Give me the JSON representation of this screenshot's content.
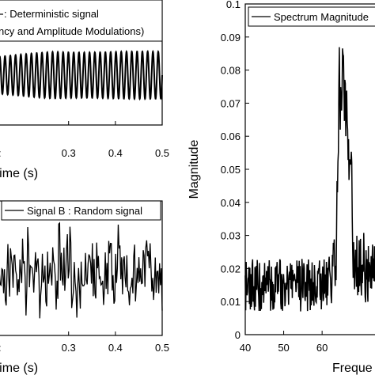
{
  "chart_data": [
    {
      "type": "line",
      "panel": "top-left",
      "legend": [
        ": Deterministic signal",
        "ncy and Amplitude Modulations)"
      ],
      "xlabel": "Time (s)",
      "xlabel_visible": "Time (s)",
      "xlim": [
        0.15,
        0.5
      ],
      "xticks": [
        0.3,
        0.4,
        0.5
      ],
      "xtick_labels": [
        "0.3",
        "0.4",
        "0.5"
      ],
      "partial_tick_label": ":",
      "signal": {
        "kind": "deterministic-am-fm",
        "cycles_visible": 31,
        "amplitude_norm": [
          0.7,
          1.0
        ]
      }
    },
    {
      "type": "line",
      "panel": "bottom-left",
      "legend": [
        "Signal B : Random signal"
      ],
      "xlabel": "Time (s)",
      "xlabel_visible": "Time (s)",
      "xlim": [
        0.15,
        0.5
      ],
      "xticks": [
        0.3,
        0.4,
        0.5
      ],
      "xtick_labels": [
        "0.3",
        "0.4",
        "0.5"
      ],
      "partial_tick_label": ":",
      "signal": {
        "kind": "random-noise"
      }
    },
    {
      "type": "line",
      "panel": "right",
      "legend": [
        "Spectrum Magnitude"
      ],
      "xlabel": "Freque",
      "ylabel": "Magnitude",
      "xlim": [
        40,
        75
      ],
      "ylim": [
        0,
        0.1
      ],
      "xticks": [
        40,
        50,
        60
      ],
      "xtick_labels": [
        "40",
        "50",
        "60"
      ],
      "yticks": [
        0,
        0.01,
        0.02,
        0.03,
        0.04,
        0.05,
        0.06,
        0.07,
        0.08,
        0.09,
        0.1
      ],
      "ytick_labels": [
        "0",
        "0.01",
        "0.02",
        "0.03",
        "0.04",
        "0.05",
        "0.06",
        "0.07",
        "0.08",
        "0.09",
        "0.1"
      ],
      "spectrum": {
        "baseline": 0.015,
        "peaks": [
          {
            "freq": 64.5,
            "magnitude": 0.08
          },
          {
            "freq": 65.5,
            "magnitude": 0.082
          },
          {
            "freq": 66.5,
            "magnitude": 0.07
          },
          {
            "freq": 67.5,
            "magnitude": 0.045
          }
        ]
      }
    }
  ]
}
